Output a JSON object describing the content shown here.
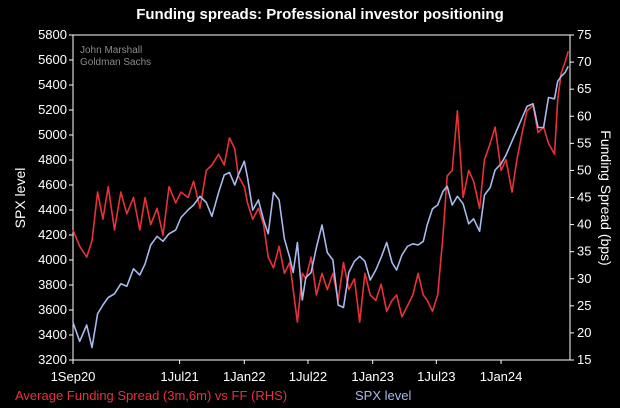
{
  "chart_data": {
    "type": "line",
    "title": "Funding spreads: Professional investor positioning",
    "credit": [
      "John Marshall",
      "Goldman Sachs"
    ],
    "ylabel_left": "SPX level",
    "ylabel_right": "Funding Spread (bps)",
    "ylim_left": [
      3200,
      5800
    ],
    "ylim_right": [
      15,
      75
    ],
    "yticks_left": [
      3200,
      3400,
      3600,
      3800,
      4000,
      4200,
      4400,
      4600,
      4800,
      5000,
      5200,
      5400,
      5600,
      5800
    ],
    "yticks_right": [
      15,
      20,
      25,
      30,
      35,
      40,
      45,
      50,
      55,
      60,
      65,
      70,
      75
    ],
    "xlim": [
      "2020-09-01",
      "2024-07-15"
    ],
    "xticks": [
      {
        "date": "2020-09-01",
        "label": "1Sep20"
      },
      {
        "date": "2021-07-01",
        "label": "1Jul21"
      },
      {
        "date": "2022-01-01",
        "label": "1Jan22"
      },
      {
        "date": "2022-07-01",
        "label": "1Jul22"
      },
      {
        "date": "2023-01-01",
        "label": "1Jan23"
      },
      {
        "date": "2023-07-01",
        "label": "1Jul23"
      },
      {
        "date": "2024-01-01",
        "label": "1Jan24"
      }
    ],
    "grid": false,
    "legend_position": "bottom",
    "series": [
      {
        "name": "Average Funding Spread (3m,6m) vs FF (RHS)",
        "axis": "right",
        "color": "#e8323a",
        "x": [
          "2020-09-01",
          "2020-09-20",
          "2020-10-10",
          "2020-10-25",
          "2020-11-10",
          "2020-11-25",
          "2020-12-10",
          "2020-12-28",
          "2021-01-15",
          "2021-02-01",
          "2021-02-20",
          "2021-03-10",
          "2021-03-25",
          "2021-04-10",
          "2021-04-28",
          "2021-05-15",
          "2021-06-01",
          "2021-06-20",
          "2021-07-05",
          "2021-07-25",
          "2021-08-10",
          "2021-08-28",
          "2021-09-15",
          "2021-10-01",
          "2021-10-20",
          "2021-11-05",
          "2021-11-20",
          "2021-12-05",
          "2021-12-15",
          "2022-01-01",
          "2022-01-10",
          "2022-01-25",
          "2022-02-10",
          "2022-02-25",
          "2022-03-10",
          "2022-03-25",
          "2022-04-10",
          "2022-04-25",
          "2022-05-10",
          "2022-05-20",
          "2022-06-01",
          "2022-06-15",
          "2022-06-25",
          "2022-07-10",
          "2022-07-25",
          "2022-08-10",
          "2022-08-25",
          "2022-09-10",
          "2022-09-25",
          "2022-10-10",
          "2022-10-25",
          "2022-11-10",
          "2022-11-25",
          "2022-12-10",
          "2022-12-25",
          "2023-01-10",
          "2023-01-25",
          "2023-02-10",
          "2023-02-25",
          "2023-03-10",
          "2023-03-25",
          "2023-04-10",
          "2023-04-25",
          "2023-05-10",
          "2023-05-25",
          "2023-06-05",
          "2023-06-20",
          "2023-07-05",
          "2023-07-20",
          "2023-08-01",
          "2023-08-15",
          "2023-08-30",
          "2023-09-15",
          "2023-10-01",
          "2023-10-15",
          "2023-11-01",
          "2023-11-15",
          "2023-12-01",
          "2023-12-15",
          "2024-01-01",
          "2024-01-15",
          "2024-02-01",
          "2024-02-15",
          "2024-03-01",
          "2024-03-15",
          "2024-04-01",
          "2024-04-15",
          "2024-05-01",
          "2024-05-15",
          "2024-06-01",
          "2024-06-10",
          "2024-06-20",
          "2024-07-01",
          "2024-07-10"
        ],
        "values": [
          39,
          36,
          34,
          37,
          46,
          41,
          47,
          39,
          46,
          42,
          45,
          39,
          45,
          40,
          43,
          38,
          47,
          44,
          46,
          45,
          48,
          43,
          50,
          51,
          53,
          51,
          56,
          54,
          49,
          47,
          44,
          41,
          43,
          40,
          34,
          32,
          36,
          31,
          33,
          28,
          22,
          31,
          30,
          34,
          27,
          31,
          28,
          31,
          26,
          33,
          28,
          30,
          22,
          31,
          27,
          26,
          29,
          24,
          26,
          27,
          23,
          25,
          27,
          31,
          27,
          26,
          24,
          27,
          38,
          49,
          50,
          61,
          45,
          50,
          48,
          43,
          52,
          55,
          58,
          50,
          52,
          46,
          52,
          57,
          61,
          62,
          57,
          58,
          55,
          53,
          63,
          68,
          70,
          72
        ]
      },
      {
        "name": "SPX level",
        "axis": "left",
        "color": "#a9b9ec",
        "x": [
          "2020-09-01",
          "2020-09-20",
          "2020-10-10",
          "2020-10-25",
          "2020-11-10",
          "2020-11-25",
          "2020-12-10",
          "2020-12-28",
          "2021-01-15",
          "2021-02-01",
          "2021-02-20",
          "2021-03-10",
          "2021-03-25",
          "2021-04-10",
          "2021-04-28",
          "2021-05-15",
          "2021-06-01",
          "2021-06-20",
          "2021-07-05",
          "2021-07-25",
          "2021-08-10",
          "2021-08-28",
          "2021-09-15",
          "2021-10-01",
          "2021-10-20",
          "2021-11-05",
          "2021-11-20",
          "2021-12-05",
          "2021-12-15",
          "2022-01-01",
          "2022-01-10",
          "2022-01-25",
          "2022-02-10",
          "2022-02-25",
          "2022-03-10",
          "2022-03-25",
          "2022-04-10",
          "2022-04-25",
          "2022-05-10",
          "2022-05-20",
          "2022-06-01",
          "2022-06-15",
          "2022-06-25",
          "2022-07-10",
          "2022-07-25",
          "2022-08-10",
          "2022-08-25",
          "2022-09-10",
          "2022-09-25",
          "2022-10-10",
          "2022-10-25",
          "2022-11-10",
          "2022-11-25",
          "2022-12-10",
          "2022-12-25",
          "2023-01-10",
          "2023-01-25",
          "2023-02-10",
          "2023-02-25",
          "2023-03-10",
          "2023-03-25",
          "2023-04-10",
          "2023-04-25",
          "2023-05-10",
          "2023-05-25",
          "2023-06-05",
          "2023-06-20",
          "2023-07-05",
          "2023-07-20",
          "2023-08-01",
          "2023-08-15",
          "2023-08-30",
          "2023-09-15",
          "2023-10-01",
          "2023-10-15",
          "2023-11-01",
          "2023-11-15",
          "2023-12-01",
          "2023-12-15",
          "2024-01-01",
          "2024-01-15",
          "2024-02-01",
          "2024-02-15",
          "2024-03-01",
          "2024-03-15",
          "2024-04-01",
          "2024-04-15",
          "2024-05-01",
          "2024-05-15",
          "2024-06-01",
          "2024-06-10",
          "2024-06-20",
          "2024-07-01",
          "2024-07-10"
        ],
        "values": [
          3500,
          3350,
          3480,
          3300,
          3570,
          3640,
          3700,
          3730,
          3810,
          3790,
          3930,
          3880,
          3970,
          4120,
          4190,
          4150,
          4210,
          4240,
          4340,
          4400,
          4440,
          4510,
          4460,
          4350,
          4540,
          4680,
          4700,
          4600,
          4680,
          4790,
          4660,
          4400,
          4480,
          4320,
          4210,
          4540,
          4480,
          4170,
          4020,
          3900,
          4140,
          3680,
          3860,
          3900,
          4100,
          4280,
          4060,
          4000,
          3640,
          3620,
          3900,
          3990,
          4030,
          3990,
          3840,
          3920,
          4020,
          4140,
          3980,
          3920,
          4040,
          4110,
          4130,
          4120,
          4150,
          4280,
          4410,
          4440,
          4550,
          4590,
          4440,
          4510,
          4450,
          4290,
          4330,
          4230,
          4520,
          4580,
          4720,
          4770,
          4840,
          4950,
          5040,
          5140,
          5230,
          5250,
          5060,
          5060,
          5300,
          5290,
          5430,
          5470,
          5500,
          5550
        ]
      }
    ]
  }
}
